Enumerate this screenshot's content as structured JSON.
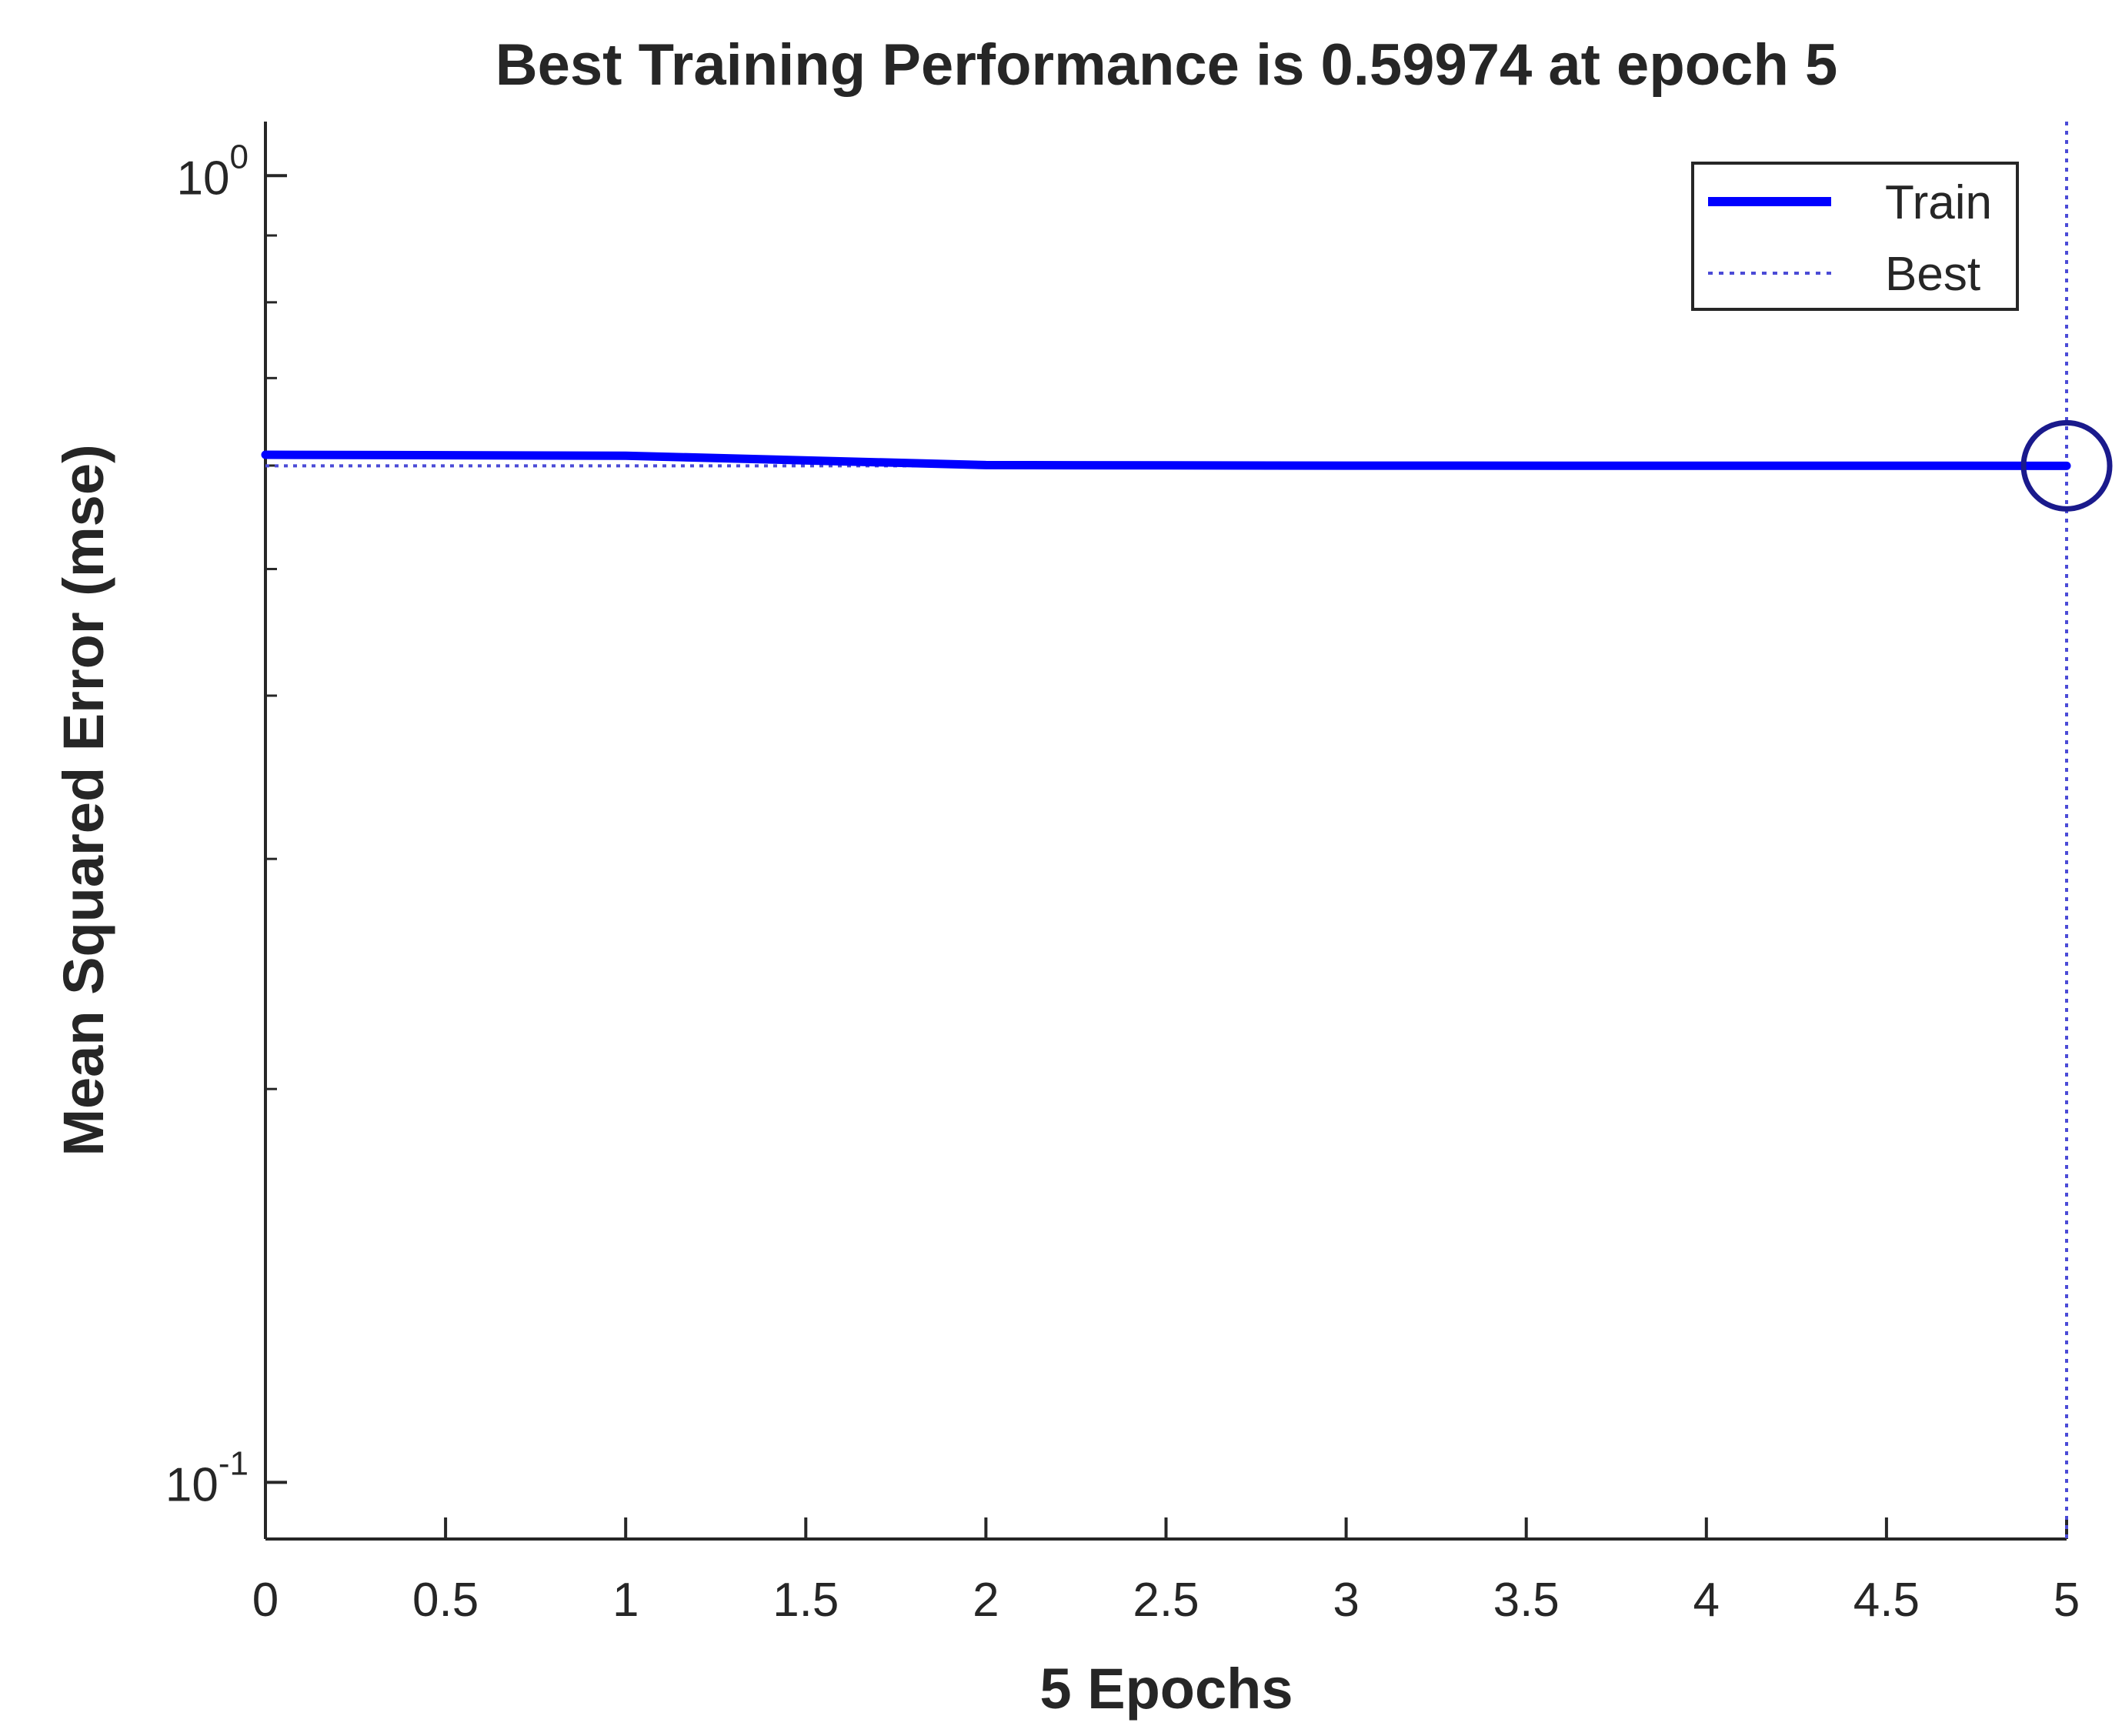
{
  "chart_data": {
    "type": "line",
    "title": "Best Training Performance is 0.59974 at epoch 5",
    "xlabel": "5 Epochs",
    "ylabel": "Mean Squared Error  (mse)",
    "xlim": [
      0,
      5
    ],
    "ylim": [
      0.0905,
      1.1
    ],
    "yscale": "log",
    "grid": false,
    "legend_position": "top-right",
    "x_ticks": [
      "0",
      "0.5",
      "1",
      "1.5",
      "2",
      "2.5",
      "3",
      "3.5",
      "4",
      "4.5",
      "5"
    ],
    "x_tick_values": [
      0,
      0.5,
      1,
      1.5,
      2,
      2.5,
      3,
      3.5,
      4,
      4.5,
      5
    ],
    "y_ticks": [
      {
        "value": 1,
        "base": "10",
        "exp": "0"
      },
      {
        "value": 0.1,
        "base": "10",
        "exp": "-1"
      }
    ],
    "series": [
      {
        "name": "Train",
        "style": "solid",
        "color": "#0000ff",
        "x": [
          0,
          1,
          2,
          3,
          4,
          5
        ],
        "y": [
          0.6115,
          0.6105,
          0.6005,
          0.5999,
          0.5998,
          0.59974
        ]
      },
      {
        "name": "Best",
        "style": "dotted",
        "color": "#4b4bd6",
        "value": 0.59974,
        "epoch": 5
      }
    ],
    "best_marker": {
      "x": 5,
      "y": 0.59974,
      "color": "#1a1a8c"
    }
  }
}
